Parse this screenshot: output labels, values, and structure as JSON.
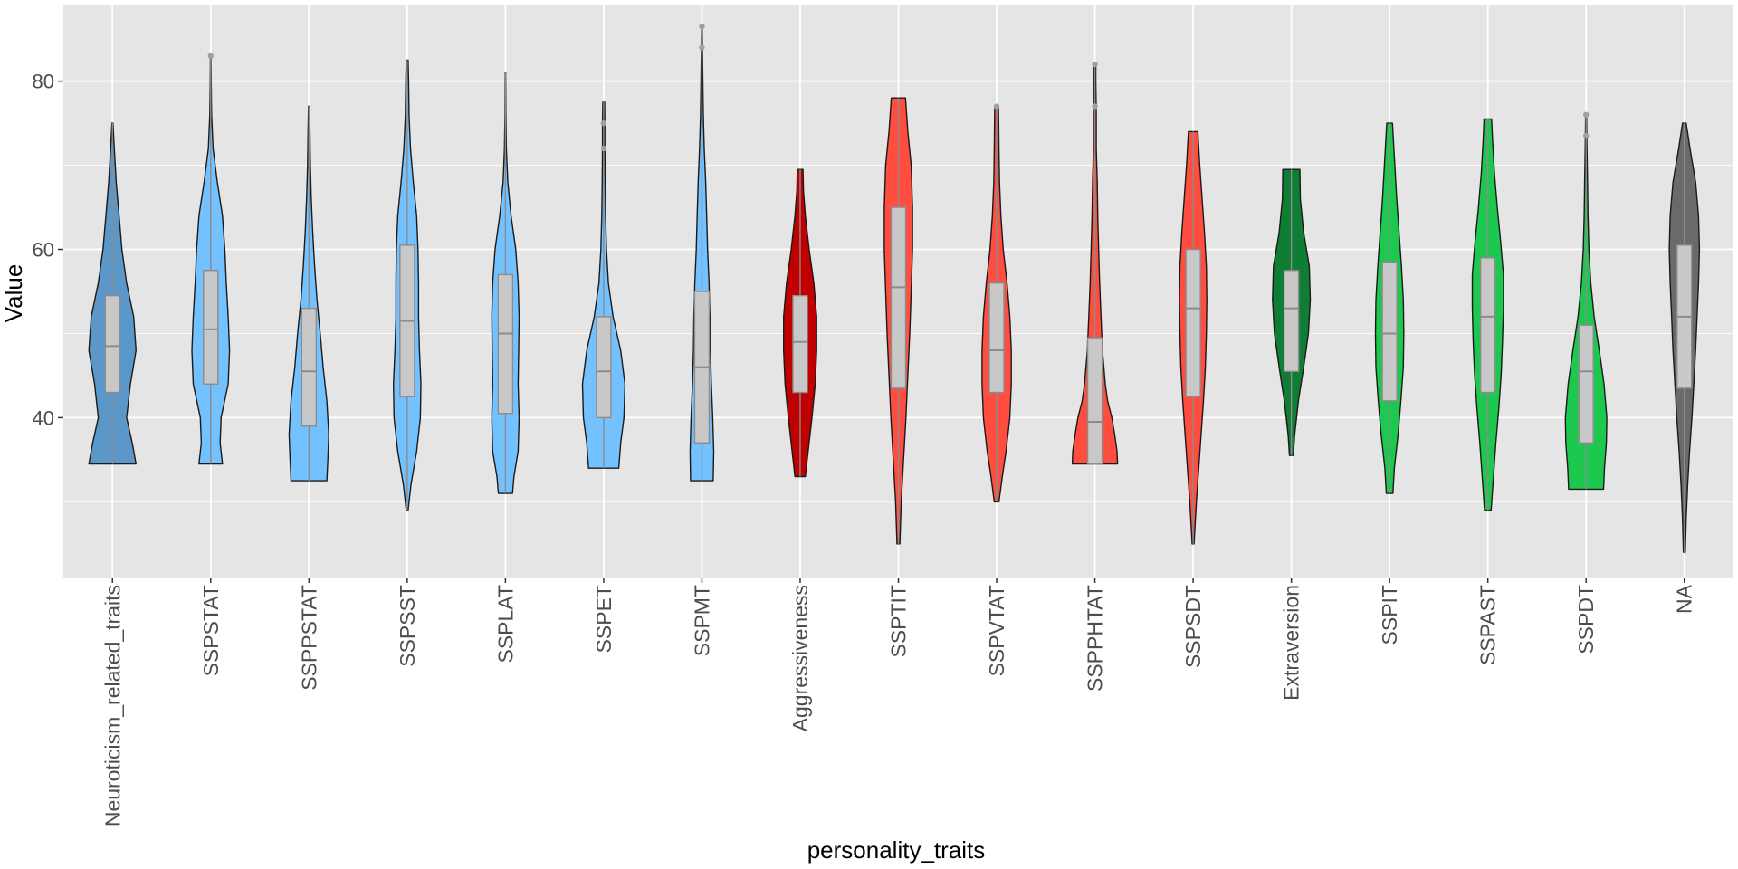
{
  "chart_data": {
    "type": "violin",
    "xlabel": "personality_traits",
    "ylabel": "Value",
    "ylim": [
      21,
      89
    ],
    "y_ticks": [
      40,
      60,
      80
    ],
    "grid": true,
    "legend": "none",
    "colors": {
      "panel_bg": "#e5e5e5",
      "grid": "#ffffff",
      "outline": "#1a1a1a",
      "box_fill": "#c8c8c8",
      "box_line": "#8c8c8c",
      "outlier": "#a0a0a0"
    },
    "categories": [
      {
        "name": "Neuroticism_related_traits",
        "color": "#5b97c8",
        "min": 34.5,
        "max": 75,
        "q1": 43,
        "median": 48.5,
        "q3": 54.5,
        "widths": [
          [
            34.5,
            0.5
          ],
          [
            37,
            0.42
          ],
          [
            40,
            0.3
          ],
          [
            44,
            0.38
          ],
          [
            48,
            0.5
          ],
          [
            52,
            0.45
          ],
          [
            56,
            0.3
          ],
          [
            60,
            0.2
          ],
          [
            64,
            0.14
          ],
          [
            68,
            0.08
          ],
          [
            72,
            0.04
          ],
          [
            75,
            0.01
          ]
        ],
        "outliers": []
      },
      {
        "name": "SSPSTAT",
        "color": "#74c1ff",
        "min": 34.5,
        "max": 83,
        "q1": 44,
        "median": 50.5,
        "q3": 57.5,
        "widths": [
          [
            34.5,
            0.25
          ],
          [
            37,
            0.2
          ],
          [
            40,
            0.22
          ],
          [
            44,
            0.37
          ],
          [
            48,
            0.4
          ],
          [
            52,
            0.37
          ],
          [
            56,
            0.33
          ],
          [
            60,
            0.3
          ],
          [
            64,
            0.25
          ],
          [
            68,
            0.14
          ],
          [
            72,
            0.05
          ],
          [
            76,
            0.02
          ],
          [
            80,
            0.01
          ],
          [
            83,
            0.005
          ]
        ],
        "outliers": [
          83
        ]
      },
      {
        "name": "SSPPSTAT",
        "color": "#74c1ff",
        "min": 32.5,
        "max": 77,
        "q1": 39,
        "median": 45.5,
        "q3": 53,
        "widths": [
          [
            32.5,
            0.38
          ],
          [
            35,
            0.4
          ],
          [
            38,
            0.42
          ],
          [
            42,
            0.38
          ],
          [
            46,
            0.3
          ],
          [
            50,
            0.24
          ],
          [
            54,
            0.17
          ],
          [
            58,
            0.12
          ],
          [
            62,
            0.08
          ],
          [
            66,
            0.05
          ],
          [
            70,
            0.03
          ],
          [
            74,
            0.02
          ],
          [
            77,
            0.01
          ]
        ],
        "outliers": []
      },
      {
        "name": "SSPSST",
        "color": "#74c1ff",
        "min": 29,
        "max": 82.5,
        "q1": 42.5,
        "median": 51.5,
        "q3": 60.5,
        "widths": [
          [
            29,
            0.02
          ],
          [
            32,
            0.08
          ],
          [
            36,
            0.2
          ],
          [
            40,
            0.28
          ],
          [
            44,
            0.29
          ],
          [
            48,
            0.26
          ],
          [
            52,
            0.24
          ],
          [
            56,
            0.24
          ],
          [
            60,
            0.23
          ],
          [
            64,
            0.2
          ],
          [
            68,
            0.13
          ],
          [
            72,
            0.07
          ],
          [
            76,
            0.04
          ],
          [
            80,
            0.03
          ],
          [
            82.5,
            0.02
          ]
        ],
        "outliers": []
      },
      {
        "name": "SSPLAT",
        "color": "#74c1ff",
        "min": 31,
        "max": 81,
        "q1": 40.5,
        "median": 50,
        "q3": 57,
        "widths": [
          [
            31,
            0.15
          ],
          [
            33,
            0.18
          ],
          [
            36,
            0.27
          ],
          [
            40,
            0.29
          ],
          [
            44,
            0.27
          ],
          [
            48,
            0.28
          ],
          [
            52,
            0.29
          ],
          [
            56,
            0.27
          ],
          [
            60,
            0.22
          ],
          [
            64,
            0.12
          ],
          [
            68,
            0.05
          ],
          [
            72,
            0.02
          ],
          [
            76,
            0.01
          ],
          [
            81,
            0.005
          ]
        ],
        "outliers": []
      },
      {
        "name": "SSPET",
        "color": "#74c1ff",
        "min": 34,
        "max": 77.5,
        "q1": 40,
        "median": 45.5,
        "q3": 52,
        "widths": [
          [
            34,
            0.32
          ],
          [
            37,
            0.36
          ],
          [
            40,
            0.43
          ],
          [
            44,
            0.45
          ],
          [
            48,
            0.36
          ],
          [
            52,
            0.2
          ],
          [
            56,
            0.1
          ],
          [
            60,
            0.06
          ],
          [
            64,
            0.04
          ],
          [
            68,
            0.03
          ],
          [
            72,
            0.025
          ],
          [
            75,
            0.025
          ],
          [
            77.5,
            0.02
          ]
        ],
        "outliers": [
          72,
          75
        ]
      },
      {
        "name": "SSPMT",
        "color": "#74c1ff",
        "min": 32.5,
        "max": 86.5,
        "q1": 37,
        "median": 46,
        "q3": 55,
        "widths": [
          [
            32.5,
            0.24
          ],
          [
            36,
            0.25
          ],
          [
            40,
            0.23
          ],
          [
            44,
            0.2
          ],
          [
            48,
            0.18
          ],
          [
            52,
            0.17
          ],
          [
            56,
            0.15
          ],
          [
            60,
            0.12
          ],
          [
            64,
            0.1
          ],
          [
            68,
            0.08
          ],
          [
            72,
            0.05
          ],
          [
            76,
            0.03
          ],
          [
            80,
            0.02
          ],
          [
            84,
            0.01
          ],
          [
            86.5,
            0.005
          ]
        ],
        "outliers": [
          84,
          86.5
        ]
      },
      {
        "name": "Aggressiveness",
        "color": "#c00000",
        "min": 33,
        "max": 69.5,
        "q1": 43,
        "median": 49,
        "q3": 54.5,
        "widths": [
          [
            33,
            0.11
          ],
          [
            36,
            0.17
          ],
          [
            40,
            0.25
          ],
          [
            44,
            0.32
          ],
          [
            48,
            0.35
          ],
          [
            52,
            0.35
          ],
          [
            56,
            0.29
          ],
          [
            60,
            0.19
          ],
          [
            64,
            0.11
          ],
          [
            67,
            0.07
          ],
          [
            69.5,
            0.06
          ]
        ],
        "outliers": []
      },
      {
        "name": "SSPTIT",
        "color": "#ff4d40",
        "min": 25,
        "max": 78,
        "q1": 43.5,
        "median": 55.5,
        "q3": 65,
        "widths": [
          [
            25,
            0.03
          ],
          [
            30,
            0.06
          ],
          [
            35,
            0.11
          ],
          [
            40,
            0.16
          ],
          [
            45,
            0.2
          ],
          [
            50,
            0.24
          ],
          [
            55,
            0.27
          ],
          [
            60,
            0.3
          ],
          [
            65,
            0.3
          ],
          [
            70,
            0.27
          ],
          [
            74,
            0.2
          ],
          [
            78,
            0.15
          ]
        ],
        "outliers": []
      },
      {
        "name": "SSPVTAT",
        "color": "#ff4d40",
        "min": 30,
        "max": 77,
        "q1": 43,
        "median": 48,
        "q3": 56,
        "widths": [
          [
            30,
            0.05
          ],
          [
            33,
            0.12
          ],
          [
            36,
            0.2
          ],
          [
            40,
            0.28
          ],
          [
            44,
            0.31
          ],
          [
            48,
            0.31
          ],
          [
            52,
            0.28
          ],
          [
            56,
            0.22
          ],
          [
            60,
            0.14
          ],
          [
            64,
            0.09
          ],
          [
            68,
            0.06
          ],
          [
            72,
            0.05
          ],
          [
            77,
            0.04
          ]
        ],
        "outliers": [
          77
        ]
      },
      {
        "name": "SSPPHTAT",
        "color": "#ff4d40",
        "min": 34.5,
        "max": 82,
        "q1": 34.5,
        "median": 39.5,
        "q3": 49.5,
        "widths": [
          [
            34.5,
            0.48
          ],
          [
            36,
            0.47
          ],
          [
            38,
            0.42
          ],
          [
            40,
            0.36
          ],
          [
            42,
            0.27
          ],
          [
            44,
            0.22
          ],
          [
            48,
            0.16
          ],
          [
            52,
            0.13
          ],
          [
            56,
            0.1
          ],
          [
            60,
            0.08
          ],
          [
            64,
            0.06
          ],
          [
            68,
            0.05
          ],
          [
            72,
            0.03
          ],
          [
            76,
            0.03
          ],
          [
            80,
            0.02
          ],
          [
            82,
            0.02
          ]
        ],
        "outliers": [
          77,
          82
        ]
      },
      {
        "name": "SSPSDT",
        "color": "#ff4d40",
        "min": 25,
        "max": 74,
        "q1": 42.5,
        "median": 53,
        "q3": 60,
        "widths": [
          [
            25,
            0.02
          ],
          [
            30,
            0.07
          ],
          [
            34,
            0.12
          ],
          [
            38,
            0.17
          ],
          [
            42,
            0.22
          ],
          [
            46,
            0.26
          ],
          [
            50,
            0.28
          ],
          [
            54,
            0.29
          ],
          [
            58,
            0.28
          ],
          [
            62,
            0.24
          ],
          [
            66,
            0.19
          ],
          [
            70,
            0.14
          ],
          [
            74,
            0.1
          ]
        ],
        "outliers": []
      },
      {
        "name": "Extraversion",
        "color": "#107d35",
        "min": 35.5,
        "max": 69.5,
        "q1": 45.5,
        "median": 53,
        "q3": 57.5,
        "widths": [
          [
            35.5,
            0.04
          ],
          [
            38,
            0.07
          ],
          [
            42,
            0.15
          ],
          [
            46,
            0.26
          ],
          [
            50,
            0.36
          ],
          [
            54,
            0.4
          ],
          [
            58,
            0.38
          ],
          [
            62,
            0.26
          ],
          [
            66,
            0.19
          ],
          [
            69.5,
            0.18
          ]
        ],
        "outliers": []
      },
      {
        "name": "SSPIT",
        "color": "#1dc84f",
        "min": 31,
        "max": 75,
        "q1": 42,
        "median": 50,
        "q3": 58.5,
        "widths": [
          [
            31,
            0.07
          ],
          [
            34,
            0.1
          ],
          [
            38,
            0.18
          ],
          [
            42,
            0.24
          ],
          [
            46,
            0.29
          ],
          [
            50,
            0.3
          ],
          [
            54,
            0.29
          ],
          [
            58,
            0.25
          ],
          [
            62,
            0.2
          ],
          [
            66,
            0.15
          ],
          [
            70,
            0.11
          ],
          [
            75,
            0.06
          ]
        ],
        "outliers": []
      },
      {
        "name": "SSPAST",
        "color": "#1dc84f",
        "min": 29,
        "max": 75.5,
        "q1": 43,
        "median": 52,
        "q3": 59,
        "widths": [
          [
            29,
            0.07
          ],
          [
            33,
            0.12
          ],
          [
            37,
            0.17
          ],
          [
            41,
            0.23
          ],
          [
            45,
            0.28
          ],
          [
            49,
            0.31
          ],
          [
            53,
            0.33
          ],
          [
            57,
            0.33
          ],
          [
            61,
            0.27
          ],
          [
            65,
            0.2
          ],
          [
            69,
            0.14
          ],
          [
            73,
            0.1
          ],
          [
            75.5,
            0.08
          ]
        ],
        "outliers": []
      },
      {
        "name": "SSPDT",
        "color": "#1dc84f",
        "min": 31.5,
        "max": 76,
        "q1": 37,
        "median": 45.5,
        "q3": 51,
        "widths": [
          [
            31.5,
            0.37
          ],
          [
            34,
            0.39
          ],
          [
            37,
            0.43
          ],
          [
            40,
            0.44
          ],
          [
            44,
            0.38
          ],
          [
            48,
            0.28
          ],
          [
            52,
            0.17
          ],
          [
            56,
            0.1
          ],
          [
            60,
            0.06
          ],
          [
            64,
            0.04
          ],
          [
            68,
            0.03
          ],
          [
            72,
            0.02
          ],
          [
            76,
            0.01
          ]
        ],
        "outliers": [
          73.5,
          76
        ]
      },
      {
        "name": "NA",
        "color": "#6a6a6a",
        "min": 24,
        "max": 75,
        "q1": 43.5,
        "median": 52,
        "q3": 60.5,
        "widths": [
          [
            24,
            0.02
          ],
          [
            28,
            0.04
          ],
          [
            32,
            0.07
          ],
          [
            36,
            0.11
          ],
          [
            40,
            0.16
          ],
          [
            44,
            0.2
          ],
          [
            48,
            0.24
          ],
          [
            52,
            0.27
          ],
          [
            56,
            0.3
          ],
          [
            60,
            0.32
          ],
          [
            64,
            0.3
          ],
          [
            68,
            0.24
          ],
          [
            72,
            0.12
          ],
          [
            75,
            0.04
          ]
        ],
        "outliers": []
      }
    ]
  }
}
